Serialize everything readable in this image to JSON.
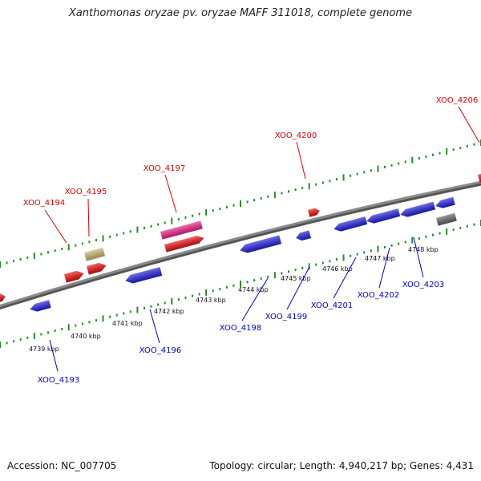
{
  "title": "Xanthomonas oryzae pv. oryzae MAFF 311018, complete genome",
  "footer": {
    "accession": "Accession: NC_007705",
    "summary": "Topology: circular; Length: 4,940,217 bp; Genes: 4,431"
  },
  "colors": {
    "forward_label": "#dd0000",
    "reverse_label": "#0000cc",
    "tick": "#2a8a2a",
    "backbone": "#8a8a8a"
  },
  "scale_ticks": [
    "4739 kbp",
    "4740 kbp",
    "4741 kbp",
    "4742 kbp",
    "4743 kbp",
    "4744 kbp",
    "4745 kbp",
    "4746 kbp",
    "4747 kbp",
    "4748 kbp"
  ],
  "genes": [
    {
      "name": "XOO_4193",
      "strand": "reverse",
      "color": "#2222dd"
    },
    {
      "name": "XOO_4194",
      "strand": "forward",
      "color": "#ee1111"
    },
    {
      "name": "XOO_4195",
      "strand": "forward",
      "color": "#c8bb77"
    },
    {
      "name": "XOO_4196",
      "strand": "reverse",
      "color": "#2222dd"
    },
    {
      "name": "XOO_4197",
      "strand": "forward",
      "color": "#ee2288"
    },
    {
      "name": "XOO_4198",
      "strand": "reverse",
      "color": "#2222dd"
    },
    {
      "name": "XOO_4199",
      "strand": "reverse",
      "color": "#2222dd"
    },
    {
      "name": "XOO_4200",
      "strand": "forward",
      "color": "#ee1111"
    },
    {
      "name": "XOO_4201",
      "strand": "reverse",
      "color": "#2222dd"
    },
    {
      "name": "XOO_4202",
      "strand": "reverse",
      "color": "#2222dd"
    },
    {
      "name": "XOO_4203",
      "strand": "reverse",
      "color": "#2222dd"
    },
    {
      "name": "XOO_4206",
      "strand": "forward",
      "color": "#ee1111"
    }
  ]
}
